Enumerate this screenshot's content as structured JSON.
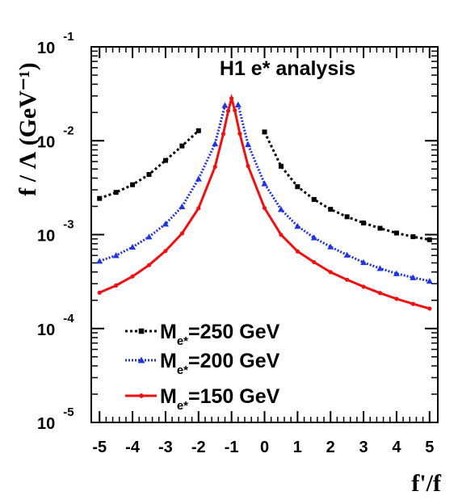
{
  "chart_data": {
    "type": "line",
    "title": "H1 e* analysis",
    "xlabel": "f'/f",
    "ylabel": "f / Λ (GeV⁻¹)",
    "xlim": [
      -5.25,
      5.25
    ],
    "ylim": [
      1e-05,
      0.1
    ],
    "yscale": "log",
    "x_ticks": [
      "-5",
      "-4",
      "-3",
      "-2",
      "-1",
      "0",
      "1",
      "2",
      "3",
      "4",
      "5"
    ],
    "y_ticks": [
      {
        "base": "10",
        "exp": "-1",
        "value": 0.1
      },
      {
        "base": "10",
        "exp": "-2",
        "value": 0.01
      },
      {
        "base": "10",
        "exp": "-3",
        "value": 0.001
      },
      {
        "base": "10",
        "exp": "-4",
        "value": 0.0001
      },
      {
        "base": "10",
        "exp": "-5",
        "value": 1e-05
      }
    ],
    "series": [
      {
        "name": "M_e*=250 GeV",
        "legend_base": "M",
        "legend_sub": "e*",
        "legend_value": "=250 GeV",
        "color": "#000000",
        "style": "dotted",
        "marker": "square",
        "segments": [
          [
            [
              -5,
              0.00243
            ],
            [
              -4.5,
              0.00282
            ],
            [
              -4,
              0.0034
            ],
            [
              -3.5,
              0.00437
            ],
            [
              -3,
              0.00617
            ],
            [
              -2.5,
              0.0088
            ],
            [
              -2,
              0.0128
            ]
          ],
          [
            [
              0,
              0.0124
            ],
            [
              0.5,
              0.00535
            ],
            [
              1,
              0.00324
            ],
            [
              1.5,
              0.00237
            ],
            [
              2,
              0.00186
            ],
            [
              2.5,
              0.00155
            ],
            [
              3,
              0.00133
            ],
            [
              3.5,
              0.00117
            ],
            [
              4,
              0.00104
            ],
            [
              4.5,
              0.00095
            ],
            [
              5,
              0.000883
            ]
          ]
        ]
      },
      {
        "name": "M_e*=200 GeV",
        "legend_base": "M",
        "legend_sub": "e*",
        "legend_value": "=200 GeV",
        "color": "#2233dd",
        "style": "dotted",
        "marker": "triangle",
        "segments": [
          [
            [
              -5,
              0.000523
            ],
            [
              -4.5,
              0.0006
            ],
            [
              -4,
              0.000737
            ],
            [
              -3.5,
              0.000948
            ],
            [
              -3,
              0.0013
            ],
            [
              -2.5,
              0.00199
            ],
            [
              -2,
              0.00393
            ],
            [
              -1.5,
              0.00929
            ],
            [
              -1.2,
              0.0238
            ]
          ],
          [
            [
              -0.8,
              0.0242
            ],
            [
              -0.5,
              0.00912
            ],
            [
              0,
              0.00349
            ],
            [
              0.5,
              0.00186
            ],
            [
              1,
              0.00123
            ],
            [
              1.5,
              0.000928
            ],
            [
              2,
              0.000742
            ],
            [
              2.5,
              0.000608
            ],
            [
              3,
              0.000506
            ],
            [
              3.5,
              0.000437
            ],
            [
              4,
              0.000385
            ],
            [
              4.5,
              0.000349
            ],
            [
              5,
              0.00032
            ]
          ]
        ]
      },
      {
        "name": "M_e*=150 GeV",
        "legend_base": "M",
        "legend_sub": "e*",
        "legend_value": "=150 GeV",
        "color": "#ee1111",
        "style": "solid",
        "marker": "dot",
        "segments": [
          [
            [
              -5,
              0.000241
            ],
            [
              -4.5,
              0.000287
            ],
            [
              -4,
              0.000359
            ],
            [
              -3.5,
              0.000474
            ],
            [
              -3,
              0.00067
            ],
            [
              -2.5,
              0.00103
            ],
            [
              -2,
              0.00191
            ],
            [
              -1.5,
              0.00528
            ],
            [
              -1.25,
              0.0118
            ],
            [
              -1.1,
              0.0208
            ],
            [
              -1,
              0.0283
            ],
            [
              -0.9,
              0.0211
            ],
            [
              -0.75,
              0.0119
            ],
            [
              -0.5,
              0.00538
            ],
            [
              0,
              0.00192
            ],
            [
              0.5,
              0.000997
            ],
            [
              1,
              0.000663
            ],
            [
              1.5,
              0.000509
            ],
            [
              2,
              0.000399
            ],
            [
              2.5,
              0.000331
            ],
            [
              3,
              0.000279
            ],
            [
              3.5,
              0.000239
            ],
            [
              4,
              0.000207
            ],
            [
              4.5,
              0.000183
            ],
            [
              5,
              0.000163
            ]
          ]
        ]
      }
    ]
  }
}
